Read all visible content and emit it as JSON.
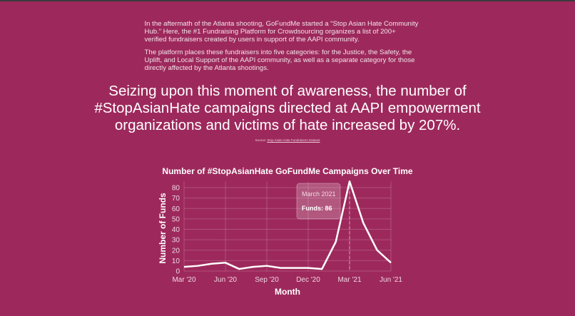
{
  "intro": [
    "In the aftermath of the Atlanta shooting, GoFundMe started a “Stop Asian Hate Community Hub.” Here, the #1 Fundraising Platform for Crowdsourcing organizes a list of 200+ verified fundraisers created by users in support of the AAPI community.",
    "The platform places these fundraisers into five categories: for the Justice, the Safety, the Uplift, and Local Support of the AAPI community, as well as a separate category for those directly affected by the Atlanta shootings."
  ],
  "headline": "Seizing upon this moment of awareness, the number of #StopAsianHate campaigns directed at AAPI empowerment organizations and victims of hate increased by 207%.",
  "source": {
    "prefix": "Source: ",
    "link": "Stop Asian Hate Fundraisers Dataset"
  },
  "chart_data": {
    "type": "line",
    "title": "Number of #StopAsianHate GoFundMe Campaigns Over Time",
    "xlabel": "Month",
    "ylabel": "Number of Funds",
    "x": [
      "2020-03",
      "2020-04",
      "2020-05",
      "2020-06",
      "2020-07",
      "2020-08",
      "2020-09",
      "2020-10",
      "2020-11",
      "2020-12",
      "2021-01",
      "2021-02",
      "2021-03",
      "2021-04",
      "2021-05",
      "2021-06"
    ],
    "values": [
      4,
      5,
      7,
      8,
      2,
      4,
      5,
      3,
      3,
      3,
      2,
      28,
      86,
      46,
      20,
      8
    ],
    "x_ticks": [
      "Mar '20",
      "Jun '20",
      "Sep '20",
      "Dec '20",
      "Mar '21",
      "Jun '21"
    ],
    "y_ticks": [
      0,
      10,
      20,
      30,
      40,
      50,
      60,
      70,
      80
    ],
    "ylim": [
      0,
      86
    ],
    "grid": true,
    "line_color": "#ffffff",
    "tooltip": {
      "title": "March 2021",
      "label": "Funds: 86",
      "index": 12
    }
  }
}
